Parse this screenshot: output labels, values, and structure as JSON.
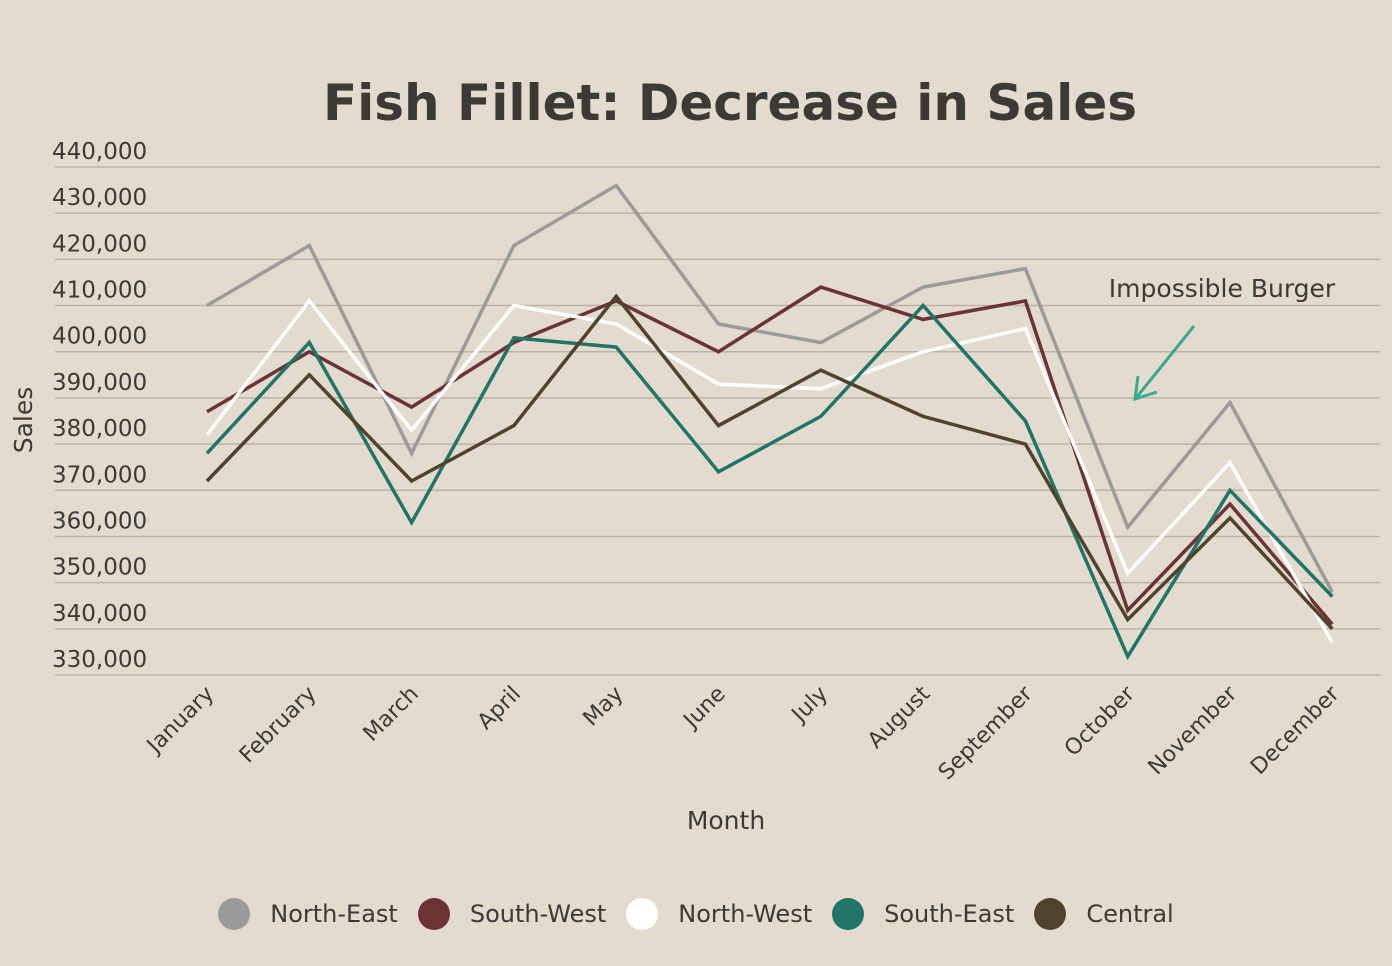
{
  "chart_data": {
    "type": "line",
    "title": "Fish Fillet: Decrease in Sales",
    "xlabel": "Month",
    "ylabel": "Sales",
    "ylim": [
      330000,
      440000
    ],
    "yticks": [
      330000,
      340000,
      350000,
      360000,
      370000,
      380000,
      390000,
      400000,
      410000,
      420000,
      430000,
      440000
    ],
    "ytick_labels": [
      "330,000",
      "340,000",
      "350,000",
      "360,000",
      "370,000",
      "380,000",
      "390,000",
      "400,000",
      "410,000",
      "420,000",
      "430,000",
      "440,000"
    ],
    "categories": [
      "January",
      "February",
      "March",
      "April",
      "May",
      "June",
      "July",
      "August",
      "September",
      "October",
      "November",
      "December"
    ],
    "grid": true,
    "legend_position": "bottom",
    "series": [
      {
        "name": "North-East",
        "color": "#9d9b9a",
        "values": [
          410000,
          423000,
          378000,
          423000,
          436000,
          406000,
          402000,
          414000,
          418000,
          362000,
          389000,
          348000
        ]
      },
      {
        "name": "South-West",
        "color": "#6b3334",
        "values": [
          387000,
          400000,
          388000,
          402000,
          411000,
          400000,
          414000,
          407000,
          411000,
          344000,
          367000,
          341000
        ]
      },
      {
        "name": "North-West",
        "color": "#ffffff",
        "values": [
          382000,
          411000,
          383000,
          410000,
          406000,
          393000,
          392000,
          400000,
          405000,
          352000,
          376000,
          337000
        ]
      },
      {
        "name": "South-East",
        "color": "#217567",
        "values": [
          378000,
          402000,
          363000,
          403000,
          401000,
          374000,
          386000,
          410000,
          385000,
          334000,
          370000,
          347000
        ]
      },
      {
        "name": "Central",
        "color": "#50432e",
        "values": [
          372000,
          395000,
          372000,
          384000,
          412000,
          384000,
          396000,
          386000,
          380000,
          342000,
          364000,
          340000
        ]
      }
    ],
    "annotations": [
      {
        "text": "Impossible Burger",
        "arrow_color": "#3aa88e"
      }
    ]
  }
}
